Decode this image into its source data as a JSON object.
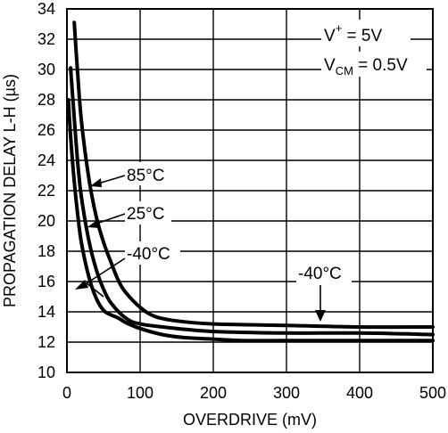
{
  "chart_data": {
    "type": "line",
    "xlabel": "OVERDRIVE (mV)",
    "ylabel": "PROPAGATION DELAY L-H (µs)",
    "xlim": [
      0,
      500
    ],
    "ylim": [
      10,
      34
    ],
    "x_ticks": [
      0,
      100,
      200,
      300,
      400,
      500
    ],
    "y_ticks": [
      10,
      12,
      14,
      16,
      18,
      20,
      22,
      24,
      26,
      28,
      30,
      32,
      34
    ],
    "grid": true,
    "conditions": {
      "v_plus_main": "V",
      "v_plus_sup": "+",
      "v_plus_value": " = 5V",
      "vcm_main": "V",
      "vcm_sub": "CM",
      "vcm_value": " = 0.5V"
    },
    "series": [
      {
        "name": "85°C",
        "x": [
          10,
          15,
          20,
          30,
          40,
          50,
          60,
          70,
          80,
          100,
          120,
          150,
          200,
          300,
          400,
          500
        ],
        "y": [
          33.1,
          29.5,
          26.5,
          22.8,
          20.3,
          18.6,
          17.3,
          16.1,
          15.3,
          14.3,
          13.7,
          13.4,
          13.2,
          13.1,
          13.0,
          13.0
        ]
      },
      {
        "name": "25°C",
        "x": [
          5,
          10,
          15,
          20,
          30,
          40,
          50,
          60,
          80,
          100,
          150,
          200,
          300,
          400,
          500
        ],
        "y": [
          30.1,
          26.8,
          23.7,
          21.5,
          18.7,
          16.8,
          15.5,
          14.6,
          13.6,
          13.2,
          12.9,
          12.7,
          12.6,
          12.6,
          12.5
        ]
      },
      {
        "name": "-40°C",
        "x": [
          2,
          5,
          10,
          15,
          20,
          30,
          40,
          50,
          60,
          70,
          80,
          100,
          130,
          160,
          200,
          240,
          300,
          400,
          500
        ],
        "y": [
          28.0,
          25.6,
          22.6,
          20.3,
          18.5,
          16.3,
          14.9,
          14.1,
          13.8,
          13.6,
          13.3,
          12.9,
          12.5,
          12.3,
          12.2,
          12.1,
          12.1,
          12.1,
          12.1
        ]
      }
    ],
    "annotations": [
      {
        "text": "85°C",
        "series": "85°C"
      },
      {
        "text": "25°C",
        "series": "25°C"
      },
      {
        "text": "-40°C",
        "series": "-40°C"
      },
      {
        "text": "-40°C",
        "series": "-40°C"
      }
    ]
  }
}
